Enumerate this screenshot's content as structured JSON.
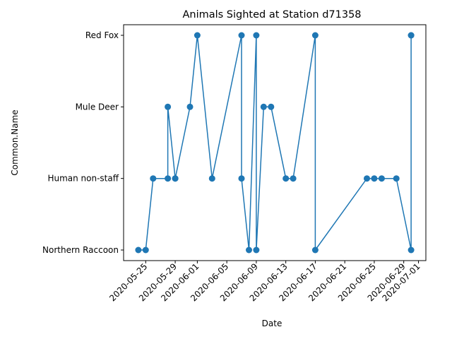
{
  "chart_data": {
    "type": "line",
    "title": "Animals Sighted at Station d71358",
    "xlabel": "Date",
    "ylabel": "Common.Name",
    "categories": [
      "Northern Raccoon",
      "Human non-staff",
      "Mule Deer",
      "Red Fox"
    ],
    "x_ticks": [
      "2020-05-25",
      "2020-05-29",
      "2020-06-01",
      "2020-06-05",
      "2020-06-09",
      "2020-06-13",
      "2020-06-17",
      "2020-06-21",
      "2020-06-25",
      "2020-06-29",
      "2020-07-01"
    ],
    "xlim": [
      "2020-05-22",
      "2020-07-02"
    ],
    "grid": false,
    "marker": "circle",
    "color": "#1f77b4",
    "points": [
      {
        "x": "2020-05-24",
        "y": "Northern Raccoon"
      },
      {
        "x": "2020-05-25",
        "y": "Northern Raccoon"
      },
      {
        "x": "2020-05-26",
        "y": "Human non-staff"
      },
      {
        "x": "2020-05-28",
        "y": "Human non-staff"
      },
      {
        "x": "2020-05-28",
        "y": "Mule Deer"
      },
      {
        "x": "2020-05-29",
        "y": "Human non-staff"
      },
      {
        "x": "2020-05-29",
        "y": "Human non-staff"
      },
      {
        "x": "2020-05-31",
        "y": "Mule Deer"
      },
      {
        "x": "2020-06-01",
        "y": "Red Fox"
      },
      {
        "x": "2020-06-03",
        "y": "Human non-staff"
      },
      {
        "x": "2020-06-07",
        "y": "Red Fox"
      },
      {
        "x": "2020-06-07",
        "y": "Human non-staff"
      },
      {
        "x": "2020-06-08",
        "y": "Northern Raccoon"
      },
      {
        "x": "2020-06-09",
        "y": "Red Fox"
      },
      {
        "x": "2020-06-09",
        "y": "Northern Raccoon"
      },
      {
        "x": "2020-06-10",
        "y": "Mule Deer"
      },
      {
        "x": "2020-06-11",
        "y": "Mule Deer"
      },
      {
        "x": "2020-06-13",
        "y": "Human non-staff"
      },
      {
        "x": "2020-06-14",
        "y": "Human non-staff"
      },
      {
        "x": "2020-06-17",
        "y": "Red Fox"
      },
      {
        "x": "2020-06-17",
        "y": "Northern Raccoon"
      },
      {
        "x": "2020-06-24",
        "y": "Human non-staff"
      },
      {
        "x": "2020-06-25",
        "y": "Human non-staff"
      },
      {
        "x": "2020-06-26",
        "y": "Human non-staff"
      },
      {
        "x": "2020-06-28",
        "y": "Human non-staff"
      },
      {
        "x": "2020-06-30",
        "y": "Northern Raccoon"
      },
      {
        "x": "2020-06-30",
        "y": "Red Fox"
      },
      {
        "x": "2020-06-30",
        "y": "Red Fox"
      }
    ]
  }
}
